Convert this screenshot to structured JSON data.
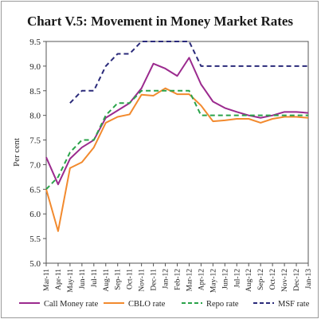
{
  "chart_data": {
    "type": "line",
    "title": "Chart V.5: Movement in Money Market Rates",
    "xlabel": "",
    "ylabel": "Per cent",
    "ylim": [
      5.0,
      9.5
    ],
    "yticks": [
      "5.0",
      "5.5",
      "6.0",
      "6.5",
      "7.0",
      "7.5",
      "8.0",
      "8.5",
      "9.0",
      "9.5"
    ],
    "categories": [
      "Mar-11",
      "Apr-11",
      "May-11",
      "Jun-11",
      "Jul-11",
      "Aug-11",
      "Sep-11",
      "Oct-11",
      "Nov-11",
      "Dec-11",
      "Jan-12",
      "Feb-12",
      "Mar-12",
      "Apr-12",
      "May-12",
      "Jun-12",
      "Jul-12",
      "Aug-12",
      "Sep-12",
      "Oct-12",
      "Nov-12",
      "Dec-12",
      "Jan-13"
    ],
    "x_tick_labels": [
      "Mar-11",
      "Apr-11",
      "May-11",
      "Jun-11",
      "Jul-11",
      "Aug-11",
      "Sep-11",
      "Oct-11",
      "Nov-11",
      "Dec-11",
      "Jan-12",
      "Feb-12",
      "Mar-12",
      "Apr-12",
      "May-12",
      "Jun-12",
      "Jul-12",
      "Aug-12",
      "Sep-12",
      "Oct-12",
      "Nov-12",
      "Dec-12",
      "Jan-13"
    ],
    "grid": false,
    "legend_position": "bottom",
    "series": [
      {
        "name": "Call Money rate",
        "color": "#9b2a8e",
        "style": "solid",
        "values": [
          7.15,
          6.6,
          7.12,
          7.35,
          7.5,
          7.95,
          8.1,
          8.25,
          8.55,
          9.05,
          8.95,
          8.8,
          9.17,
          8.63,
          8.28,
          8.15,
          8.07,
          8.0,
          7.95,
          8.0,
          8.07,
          8.07,
          8.05
        ]
      },
      {
        "name": "CBLO rate",
        "color": "#f28a2e",
        "style": "solid",
        "values": [
          6.5,
          5.65,
          6.93,
          7.05,
          7.35,
          7.85,
          7.97,
          8.02,
          8.42,
          8.4,
          8.55,
          8.43,
          8.43,
          8.2,
          7.88,
          7.9,
          7.93,
          7.93,
          7.85,
          7.93,
          7.97,
          7.97,
          7.95
        ]
      },
      {
        "name": "Repo rate",
        "color": "#2aa34a",
        "style": "dashed",
        "values": [
          6.5,
          6.75,
          7.25,
          7.5,
          7.5,
          8.0,
          8.25,
          8.25,
          8.5,
          8.5,
          8.5,
          8.5,
          8.5,
          8.0,
          8.0,
          8.0,
          8.0,
          8.0,
          8.0,
          8.0,
          8.0,
          8.0,
          8.0
        ]
      },
      {
        "name": "MSF rate",
        "color": "#2a2a7a",
        "style": "dashed",
        "values": [
          null,
          null,
          8.25,
          8.5,
          8.5,
          9.0,
          9.25,
          9.25,
          9.5,
          9.5,
          9.5,
          9.5,
          9.5,
          9.0,
          9.0,
          9.0,
          9.0,
          9.0,
          9.0,
          9.0,
          9.0,
          9.0,
          9.0
        ]
      }
    ]
  }
}
